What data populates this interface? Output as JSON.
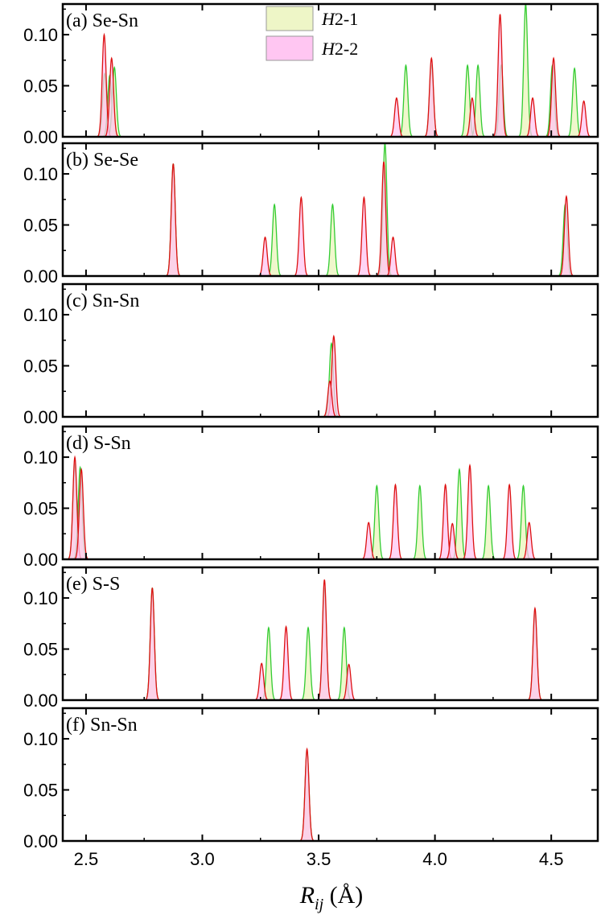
{
  "chart_data": {
    "type": "area",
    "x_range": [
      2.4,
      4.7
    ],
    "x_ticks": [
      {
        "value": 2.5,
        "label": "2.5"
      },
      {
        "value": 3.0,
        "label": "3.0"
      },
      {
        "value": 3.5,
        "label": "3.5"
      },
      {
        "value": 4.0,
        "label": "4.0"
      },
      {
        "value": 4.5,
        "label": "4.5"
      }
    ],
    "xlabel": {
      "main": "R",
      "sub": "ij",
      "unit": " (Å)"
    },
    "y_range": [
      0,
      0.13
    ],
    "y_ticks": [
      {
        "value": 0.0,
        "label": "0.00"
      },
      {
        "value": 0.05,
        "label": "0.05"
      },
      {
        "value": 0.1,
        "label": "0.10"
      }
    ],
    "peak_width": 0.0085,
    "legend": {
      "placement": "top-center",
      "entries": [
        {
          "prefix": "H",
          "suffix": "2-1",
          "fill": "#eef6c7",
          "line": "#33cc33"
        },
        {
          "prefix": "H",
          "suffix": "2-2",
          "fill": "#ffc6f2",
          "line": "#dd1111"
        }
      ]
    },
    "panels": [
      {
        "label": "(a) Se-Sn",
        "series": [
          {
            "name": "H2-1",
            "peaks": [
              [
                2.58,
                0.062
              ],
              [
                2.602,
                0.06
              ],
              [
                2.622,
                0.068
              ],
              [
                3.875,
                0.07
              ],
              [
                3.985,
                0.07
              ],
              [
                4.14,
                0.07
              ],
              [
                4.185,
                0.07
              ],
              [
                4.285,
                0.07
              ],
              [
                4.39,
                0.13
              ],
              [
                4.505,
                0.07
              ],
              [
                4.6,
                0.067
              ]
            ]
          },
          {
            "name": "H2-2",
            "peaks": [
              [
                2.578,
                0.1
              ],
              [
                2.61,
                0.077
              ],
              [
                3.835,
                0.038
              ],
              [
                3.985,
                0.077
              ],
              [
                4.16,
                0.038
              ],
              [
                4.28,
                0.12
              ],
              [
                4.42,
                0.038
              ],
              [
                4.51,
                0.077
              ],
              [
                4.64,
                0.035
              ]
            ]
          }
        ]
      },
      {
        "label": "(b) Se-Se",
        "series": [
          {
            "name": "H2-1",
            "peaks": [
              [
                2.875,
                0.11
              ],
              [
                3.31,
                0.07
              ],
              [
                3.56,
                0.07
              ],
              [
                3.785,
                0.13
              ],
              [
                4.56,
                0.07
              ]
            ]
          },
          {
            "name": "H2-2",
            "peaks": [
              [
                2.875,
                0.11
              ],
              [
                3.27,
                0.038
              ],
              [
                3.425,
                0.077
              ],
              [
                3.695,
                0.077
              ],
              [
                3.78,
                0.112
              ],
              [
                3.82,
                0.038
              ],
              [
                4.565,
                0.078
              ]
            ]
          }
        ]
      },
      {
        "label": "(c) Sn-Sn",
        "series": [
          {
            "name": "H2-1",
            "peaks": [
              [
                3.555,
                0.072
              ]
            ]
          },
          {
            "name": "H2-2",
            "peaks": [
              [
                3.565,
                0.079
              ],
              [
                3.548,
                0.035
              ]
            ]
          }
        ]
      },
      {
        "label": "(d) S-Sn",
        "series": [
          {
            "name": "H2-1",
            "peaks": [
              [
                2.452,
                0.093
              ],
              [
                2.475,
                0.09
              ],
              [
                3.75,
                0.072
              ],
              [
                3.935,
                0.072
              ],
              [
                4.105,
                0.088
              ],
              [
                4.23,
                0.072
              ],
              [
                4.38,
                0.072
              ]
            ]
          },
          {
            "name": "H2-2",
            "peaks": [
              [
                2.452,
                0.1
              ],
              [
                2.48,
                0.088
              ],
              [
                3.715,
                0.036
              ],
              [
                3.83,
                0.073
              ],
              [
                4.045,
                0.073
              ],
              [
                4.075,
                0.035
              ],
              [
                4.15,
                0.092
              ],
              [
                4.32,
                0.073
              ],
              [
                4.405,
                0.036
              ]
            ]
          }
        ]
      },
      {
        "label": "(e) S-S",
        "series": [
          {
            "name": "H2-1",
            "peaks": [
              [
                2.785,
                0.11
              ],
              [
                3.285,
                0.071
              ],
              [
                3.455,
                0.071
              ],
              [
                3.525,
                0.11
              ],
              [
                3.61,
                0.071
              ],
              [
                4.43,
                0.085
              ]
            ]
          },
          {
            "name": "H2-2",
            "peaks": [
              [
                2.785,
                0.11
              ],
              [
                3.255,
                0.036
              ],
              [
                3.36,
                0.072
              ],
              [
                3.525,
                0.118
              ],
              [
                3.63,
                0.035
              ],
              [
                4.43,
                0.09
              ]
            ]
          }
        ]
      },
      {
        "label": "(f) Sn-Sn",
        "series": [
          {
            "name": "H2-1",
            "peaks": [
              [
                3.45,
                0.088
              ]
            ]
          },
          {
            "name": "H2-2",
            "peaks": [
              [
                3.45,
                0.09
              ]
            ]
          }
        ]
      }
    ]
  }
}
